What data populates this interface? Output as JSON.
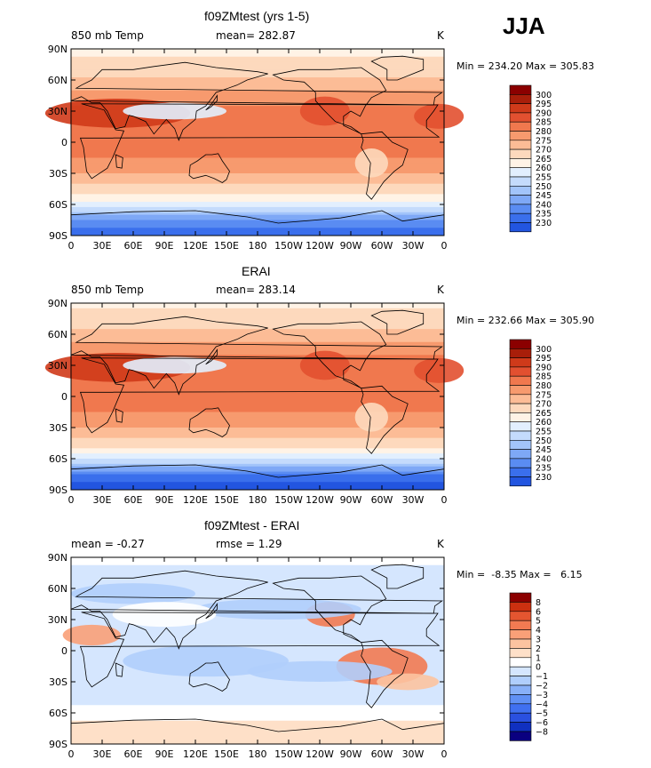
{
  "season": "JJA",
  "palettes": {
    "abs": [
      "#000080",
      "#0033cc",
      "#2255e0",
      "#3a6fec",
      "#5a8cf2",
      "#7ea8f6",
      "#a2c4fa",
      "#c4dbfc",
      "#e2effe",
      "#fff3e6",
      "#fdd9bd",
      "#fcbc96",
      "#f79a6e",
      "#f0784e",
      "#e25030",
      "#cf3a1a",
      "#a81e0a",
      "#8b0000"
    ],
    "diff": [
      "#0a0080",
      "#1030c0",
      "#2a50e0",
      "#4070f0",
      "#6090f4",
      "#88b0f8",
      "#b0cefc",
      "#d5e6fe",
      "#ffffff",
      "#fee0c8",
      "#fcc3a0",
      "#f9a078",
      "#f27a52",
      "#e45530",
      "#cc3010",
      "#8b0000"
    ],
    "ocean_land_mask_note": ""
  },
  "panels": [
    {
      "title": "f09ZMtest (yrs 1-5)",
      "var_label": "850 mb Temp",
      "stat_text": "mean=  282.87",
      "units": "K",
      "minmax": "Min = 234.20 Max = 305.83",
      "kind": "abs"
    },
    {
      "title": "ERAI",
      "var_label": "850 mb Temp",
      "stat_text": "mean=  283.14",
      "units": "K",
      "minmax": "Min = 232.66 Max = 305.90",
      "kind": "abs"
    },
    {
      "title": "f09ZMtest - ERAI",
      "var_label": "mean =   -0.27",
      "stat_text": "rmse =    1.29",
      "units": "K",
      "minmax": "Min =  -8.35 Max =   6.15",
      "kind": "diff"
    }
  ],
  "chart_data": [
    {
      "type": "heatmap",
      "title": "f09ZMtest (yrs 1-5)",
      "variable": "850 mb Temp",
      "units": "K",
      "mean": 282.87,
      "min": 234.2,
      "max": 305.83,
      "x_ticks": [
        "0",
        "30E",
        "60E",
        "90E",
        "120E",
        "150E",
        "180",
        "150W",
        "120W",
        "90W",
        "60W",
        "30W",
        "0"
      ],
      "y_ticks": [
        "90N",
        "60N",
        "30N",
        "0",
        "30S",
        "60S",
        "90S"
      ],
      "colorbar_levels": [
        "300",
        "295",
        "290",
        "285",
        "280",
        "275",
        "270",
        "265",
        "260",
        "255",
        "250",
        "245",
        "240",
        "235",
        "230"
      ],
      "zonal_profile": {
        "lat": [
          90,
          75,
          60,
          45,
          30,
          15,
          0,
          -15,
          -30,
          -45,
          -60,
          -75,
          -90
        ],
        "value": [
          274,
          276,
          281,
          287,
          292,
          293,
          292,
          290,
          285,
          278,
          268,
          250,
          240
        ]
      }
    },
    {
      "type": "heatmap",
      "title": "ERAI",
      "variable": "850 mb Temp",
      "units": "K",
      "mean": 283.14,
      "min": 232.66,
      "max": 305.9,
      "x_ticks": [
        "0",
        "30E",
        "60E",
        "90E",
        "120E",
        "150E",
        "180",
        "150W",
        "120W",
        "90W",
        "60W",
        "30W",
        "0"
      ],
      "y_ticks": [
        "90N",
        "60N",
        "30N",
        "0",
        "30S",
        "60S",
        "90S"
      ],
      "colorbar_levels": [
        "300",
        "295",
        "290",
        "285",
        "280",
        "275",
        "270",
        "265",
        "260",
        "255",
        "250",
        "245",
        "240",
        "235",
        "230"
      ],
      "zonal_profile": {
        "lat": [
          90,
          75,
          60,
          45,
          30,
          15,
          0,
          -15,
          -30,
          -45,
          -60,
          -75,
          -90
        ],
        "value": [
          274,
          277,
          282,
          288,
          293,
          293,
          292,
          290,
          285,
          278,
          266,
          245,
          236
        ]
      }
    },
    {
      "type": "heatmap",
      "title": "f09ZMtest - ERAI",
      "variable": "",
      "units": "K",
      "mean": -0.27,
      "rmse": 1.29,
      "min": -8.35,
      "max": 6.15,
      "x_ticks": [
        "0",
        "30E",
        "60E",
        "90E",
        "120E",
        "150E",
        "180",
        "150W",
        "120W",
        "90W",
        "60W",
        "30W",
        "0"
      ],
      "y_ticks": [
        "90N",
        "60N",
        "30N",
        "0",
        "30S",
        "60S",
        "90S"
      ],
      "colorbar_levels": [
        "8",
        "6",
        "5",
        "4",
        "3",
        "2",
        "1",
        "0",
        "−1",
        "−2",
        "−3",
        "−4",
        "−5",
        "−6",
        "−8"
      ],
      "zonal_profile": {
        "lat": [
          90,
          75,
          60,
          45,
          30,
          15,
          0,
          -15,
          -30,
          -45,
          -60,
          -75,
          -90
        ],
        "value": [
          0.5,
          -0.5,
          -1,
          -0.5,
          -0.8,
          -0.5,
          -0.3,
          -0.4,
          -0.8,
          -0.5,
          0.5,
          1.5,
          1
        ]
      }
    }
  ]
}
